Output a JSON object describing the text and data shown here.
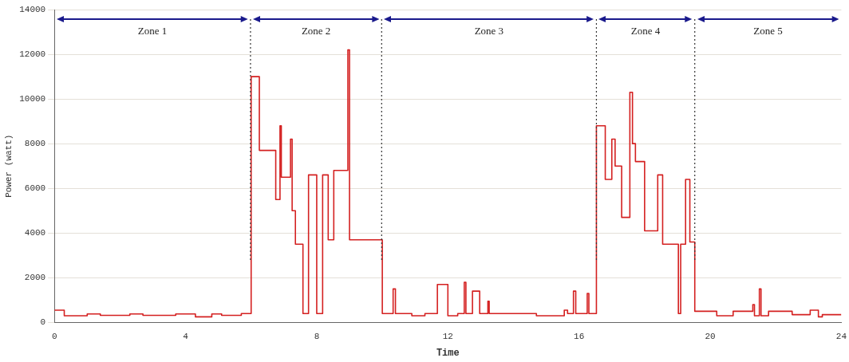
{
  "chart_data": {
    "type": "step",
    "xlabel": "Time",
    "ylabel": "Power (watt)",
    "xlim": [
      0,
      24
    ],
    "xticks": [
      0,
      4,
      8,
      12,
      16,
      20,
      24
    ],
    "ylim": [
      0,
      14000
    ],
    "yticks": [
      0,
      2000,
      4000,
      6000,
      8000,
      10000,
      12000,
      14000
    ],
    "grid": "y",
    "legend": false,
    "line_style": "solid",
    "marker": "none",
    "series": [
      {
        "color": "#d42020",
        "x": [
          0,
          0.3,
          1.0,
          1.4,
          2.3,
          2.7,
          3.7,
          4.3,
          4.8,
          5.1,
          5.7,
          6.0,
          6.25,
          6.75,
          6.88,
          6.92,
          7.2,
          7.25,
          7.35,
          7.58,
          7.75,
          8.0,
          8.18,
          8.35,
          8.52,
          8.95,
          9.0,
          10.0,
          10.33,
          10.4,
          10.9,
          11.3,
          11.68,
          12.0,
          12.3,
          12.5,
          12.55,
          12.75,
          12.97,
          13.22,
          13.26,
          14.7,
          15.55,
          15.65,
          15.83,
          15.9,
          16.25,
          16.3,
          16.53,
          16.8,
          17.0,
          17.1,
          17.3,
          17.55,
          17.63,
          17.72,
          18.0,
          18.4,
          18.55,
          19.03,
          19.1,
          19.25,
          19.38,
          19.53,
          20.2,
          20.7,
          21.3,
          21.35,
          21.5,
          21.55,
          21.78,
          22.5,
          23.05,
          23.3,
          23.42,
          24
        ],
        "values": [
          550,
          300,
          380,
          320,
          380,
          320,
          380,
          250,
          380,
          320,
          400,
          11000,
          7700,
          5500,
          8800,
          6500,
          8200,
          5000,
          3500,
          400,
          6600,
          400,
          6600,
          3700,
          6800,
          12200,
          3700,
          400,
          1500,
          400,
          300,
          400,
          1700,
          300,
          400,
          1800,
          400,
          1400,
          400,
          950,
          400,
          300,
          550,
          400,
          1400,
          400,
          1300,
          400,
          8800,
          6400,
          8200,
          7000,
          4700,
          10300,
          8000,
          7200,
          4100,
          6600,
          3500,
          400,
          3500,
          6400,
          3600,
          500,
          300,
          500,
          800,
          300,
          1500,
          300,
          500,
          350,
          550,
          250,
          350,
          350
        ]
      }
    ],
    "ref_lines": [
      {
        "axis": "x",
        "value": 5.98,
        "line_style": "dotted",
        "color": "#333333"
      },
      {
        "axis": "x",
        "value": 9.98,
        "line_style": "dotted",
        "color": "#333333"
      },
      {
        "axis": "x",
        "value": 16.53,
        "line_style": "dotted",
        "color": "#333333"
      },
      {
        "axis": "x",
        "value": 19.53,
        "line_style": "dotted",
        "color": "#333333"
      }
    ],
    "annotations": [
      "Zone 1",
      "Zone 2",
      "Zone 3",
      "Zone 4",
      "Zone 5"
    ]
  }
}
